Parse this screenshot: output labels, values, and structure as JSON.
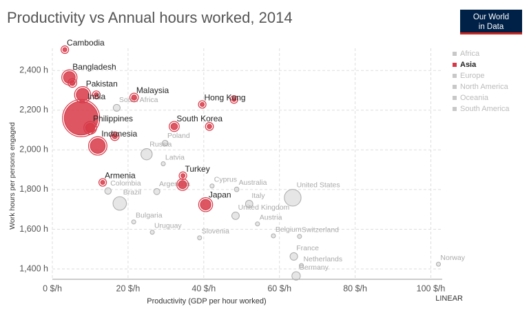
{
  "chart_data": {
    "type": "scatter",
    "title": "Productivity vs Annual hours worked, 2014",
    "logo": [
      "Our World",
      "in Data"
    ],
    "x_label": "Productivity (GDP per hour worked)",
    "y_label": "Work hours per persons engaged",
    "scale_label": "LINEAR",
    "xlim": [
      0,
      103
    ],
    "ylim": [
      1348,
      2512
    ],
    "xticks": [
      {
        "value": 0,
        "label": "0 $/h"
      },
      {
        "value": 20,
        "label": "20 $/h"
      },
      {
        "value": 40,
        "label": "40 $/h"
      },
      {
        "value": 60,
        "label": "60 $/h"
      },
      {
        "value": 80,
        "label": "80 $/h"
      },
      {
        "value": 100,
        "label": "100 $/h"
      }
    ],
    "yticks": [
      {
        "value": 1400,
        "label": "1,400 h"
      },
      {
        "value": 1600,
        "label": "1,600 h"
      },
      {
        "value": 1800,
        "label": "1,800 h"
      },
      {
        "value": 2000,
        "label": "2,000 h"
      },
      {
        "value": 2200,
        "label": "2,200 h"
      },
      {
        "value": 2400,
        "label": "2,400 h"
      }
    ],
    "grid": true,
    "highlight": "Asia",
    "series": [
      {
        "name": "Africa",
        "color": "#c8c8c8",
        "x": [
          17
        ],
        "y": [
          2212
        ],
        "sizes": [
          54
        ],
        "labels": [
          "South Africa"
        ]
      },
      {
        "name": "Asia",
        "color": "#d73847",
        "x": [
          3.3,
          4.5,
          5.3,
          8,
          11.6,
          7.6,
          10,
          12,
          16.5,
          21.6,
          39.6,
          48,
          32.2,
          41.5,
          13.3,
          34.5,
          34.4,
          40.5
        ],
        "y": [
          2505,
          2365,
          2337,
          2278,
          2278,
          2160,
          2111,
          2020,
          2069,
          2264,
          2229,
          2254,
          2118,
          2118,
          1836,
          1870,
          1825,
          1724
        ],
        "sizes": [
          15,
          159,
          30,
          185,
          20,
          1295,
          100,
          255,
          30,
          30,
          7,
          5,
          50,
          23,
          3,
          10,
          77,
          127
        ],
        "labels": [
          "Cambodia",
          "Bangladesh",
          null,
          "Pakistan",
          null,
          "India",
          "Philippines",
          "Indonesia",
          null,
          "Malaysia",
          "Hong Kong",
          null,
          "South Korea",
          null,
          "Armenia",
          "Turkey",
          null,
          "Japan"
        ]
      },
      {
        "name": "Europe",
        "color": "#c8c8c8",
        "x": [
          29.8,
          24.9,
          29.3,
          42.2,
          52,
          48.4,
          54.2,
          58.4,
          65.3,
          63.8,
          65.8,
          64.4,
          102,
          21.5,
          38.9
        ],
        "y": [
          2034,
          1978,
          1930,
          1818,
          1728,
          1668,
          1627,
          1567,
          1564,
          1463,
          1417,
          1365,
          1424,
          1637,
          1557
        ],
        "sizes": [
          38,
          144,
          2,
          1,
          61,
          64,
          9,
          11,
          8,
          66,
          17,
          81,
          5,
          7,
          2
        ],
        "labels": [
          "Poland",
          "Russia",
          "Latvia",
          "Cyprus",
          "Italy",
          "United Kingdom",
          "Austria",
          "Belgium",
          "Switzerland",
          "France",
          "Netherlands",
          "Germany",
          "Norway",
          "Bulgaria",
          "Slovenia"
        ]
      },
      {
        "name": "North America",
        "color": "#c8c8c8",
        "x": [
          63.5
        ],
        "y": [
          1759
        ],
        "sizes": [
          319
        ],
        "labels": [
          "United States"
        ]
      },
      {
        "name": "Oceania",
        "color": "#c8c8c8",
        "x": [
          48.7
        ],
        "y": [
          1801
        ],
        "sizes": [
          24
        ],
        "labels": [
          "Australia"
        ]
      },
      {
        "name": "South America",
        "color": "#c8c8c8",
        "x": [
          14.7,
          17.8,
          27.6,
          26.4
        ],
        "y": [
          1793,
          1730,
          1790,
          1585
        ],
        "sizes": [
          48,
          206,
          43,
          3
        ],
        "labels": [
          "Colombia",
          "Brazil",
          "Argentina",
          "Uruguay"
        ]
      }
    ]
  }
}
